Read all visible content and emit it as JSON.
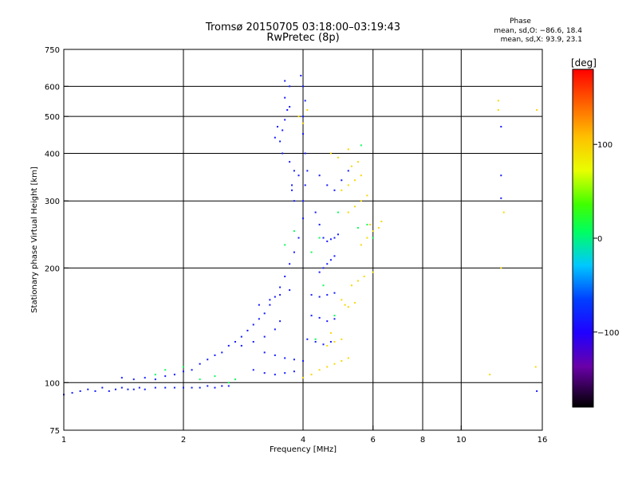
{
  "chart_data": {
    "type": "scatter",
    "title": "Tromsø 20150705 03:18:00–03:19:43",
    "subtitle": "RwPretec (8p)",
    "xlabel": "Frequency [MHz]",
    "ylabel": "Stationary phase Virtual Height [km]",
    "x_scale": "log",
    "y_scale": "log",
    "xlim": [
      1,
      16
    ],
    "ylim": [
      75,
      750
    ],
    "x_ticks": [
      1,
      2,
      4,
      6,
      8,
      10,
      16
    ],
    "y_ticks": [
      75,
      100,
      200,
      300,
      400,
      500,
      600,
      750
    ],
    "x_gridlines": [
      1,
      2,
      4,
      6,
      8,
      10
    ],
    "y_gridlines": [
      100,
      200,
      300,
      400,
      500,
      600
    ],
    "grid": true,
    "phase_legend": {
      "title": "Phase",
      "mean_sd_O": "mean, sd,O: −86.6, 18.4",
      "mean_sd_X": "mean, sd,X:  93.9, 23.1"
    },
    "colorbar": {
      "label": "[deg]",
      "range": [
        -180,
        180
      ],
      "ticks": [
        {
          "value": 100,
          "label": "100"
        },
        {
          "value": 0,
          "label": "0"
        },
        {
          "value": -100,
          "label": "−100"
        }
      ]
    },
    "series": [
      {
        "polarization": "O",
        "phase_mean": -86.6,
        "points": [
          [
            1.0,
            93
          ],
          [
            1.05,
            94
          ],
          [
            1.1,
            95
          ],
          [
            1.15,
            96
          ],
          [
            1.2,
            95
          ],
          [
            1.25,
            97
          ],
          [
            1.3,
            95
          ],
          [
            1.35,
            96
          ],
          [
            1.4,
            97
          ],
          [
            1.45,
            96
          ],
          [
            1.5,
            96
          ],
          [
            1.55,
            97
          ],
          [
            1.6,
            96
          ],
          [
            1.7,
            97
          ],
          [
            1.8,
            97
          ],
          [
            1.9,
            97
          ],
          [
            2.0,
            97
          ],
          [
            2.1,
            97
          ],
          [
            2.2,
            97
          ],
          [
            2.3,
            98
          ],
          [
            2.4,
            97
          ],
          [
            2.5,
            98
          ],
          [
            2.6,
            98
          ],
          [
            1.4,
            103
          ],
          [
            1.5,
            102
          ],
          [
            1.6,
            103
          ],
          [
            1.7,
            102
          ],
          [
            1.8,
            104
          ],
          [
            1.9,
            105
          ],
          [
            2.0,
            107
          ],
          [
            2.1,
            108
          ],
          [
            2.2,
            112
          ],
          [
            2.3,
            115
          ],
          [
            2.4,
            118
          ],
          [
            2.5,
            120
          ],
          [
            2.6,
            125
          ],
          [
            2.7,
            128
          ],
          [
            2.8,
            132
          ],
          [
            2.9,
            137
          ],
          [
            3.0,
            142
          ],
          [
            3.1,
            147
          ],
          [
            3.2,
            152
          ],
          [
            3.3,
            160
          ],
          [
            3.4,
            168
          ],
          [
            3.5,
            178
          ],
          [
            3.6,
            190
          ],
          [
            3.7,
            205
          ],
          [
            3.8,
            220
          ],
          [
            3.9,
            240
          ],
          [
            4.0,
            270
          ],
          [
            4.0,
            300
          ],
          [
            4.05,
            330
          ],
          [
            4.1,
            360
          ],
          [
            4.05,
            400
          ],
          [
            4.0,
            450
          ],
          [
            4.0,
            500
          ],
          [
            4.05,
            550
          ],
          [
            4.0,
            600
          ],
          [
            3.95,
            640
          ],
          [
            3.5,
            430
          ],
          [
            3.55,
            460
          ],
          [
            3.6,
            490
          ],
          [
            3.65,
            520
          ],
          [
            3.6,
            560
          ],
          [
            3.7,
            600
          ],
          [
            3.55,
            400
          ],
          [
            3.7,
            380
          ],
          [
            3.8,
            360
          ],
          [
            3.75,
            330
          ],
          [
            3.4,
            440
          ],
          [
            3.45,
            470
          ],
          [
            3.7,
            530
          ],
          [
            3.6,
            620
          ],
          [
            3.75,
            320
          ],
          [
            3.8,
            300
          ],
          [
            3.9,
            350
          ],
          [
            4.5,
            240
          ],
          [
            4.6,
            235
          ],
          [
            4.7,
            238
          ],
          [
            4.8,
            240
          ],
          [
            4.9,
            245
          ],
          [
            4.4,
            260
          ],
          [
            4.3,
            280
          ],
          [
            4.5,
            200
          ],
          [
            4.6,
            205
          ],
          [
            4.7,
            210
          ],
          [
            4.8,
            215
          ],
          [
            4.4,
            195
          ],
          [
            4.2,
            170
          ],
          [
            4.4,
            168
          ],
          [
            4.6,
            170
          ],
          [
            4.8,
            172
          ],
          [
            4.2,
            150
          ],
          [
            4.4,
            148
          ],
          [
            4.6,
            145
          ],
          [
            4.8,
            147
          ],
          [
            4.1,
            130
          ],
          [
            4.3,
            128
          ],
          [
            4.5,
            126
          ],
          [
            4.7,
            128
          ],
          [
            3.2,
            120
          ],
          [
            3.4,
            118
          ],
          [
            3.6,
            116
          ],
          [
            3.8,
            115
          ],
          [
            4.0,
            114
          ],
          [
            3.0,
            108
          ],
          [
            3.2,
            106
          ],
          [
            3.4,
            105
          ],
          [
            3.6,
            106
          ],
          [
            3.8,
            107
          ],
          [
            2.8,
            125
          ],
          [
            3.0,
            128
          ],
          [
            3.2,
            132
          ],
          [
            3.4,
            138
          ],
          [
            3.5,
            145
          ],
          [
            3.1,
            160
          ],
          [
            3.3,
            165
          ],
          [
            3.5,
            170
          ],
          [
            3.7,
            175
          ],
          [
            4.6,
            330
          ],
          [
            4.8,
            320
          ],
          [
            5.0,
            340
          ],
          [
            5.2,
            360
          ],
          [
            4.4,
            350
          ],
          [
            12.6,
            470
          ],
          [
            12.6,
            350
          ],
          [
            12.6,
            305
          ],
          [
            15.5,
            95
          ]
        ]
      },
      {
        "polarization": "X",
        "phase_mean": 93.9,
        "points": [
          [
            4.6,
            110
          ],
          [
            4.8,
            112
          ],
          [
            5.0,
            114
          ],
          [
            5.2,
            116
          ],
          [
            4.4,
            108
          ],
          [
            4.2,
            105
          ],
          [
            4.0,
            103
          ],
          [
            4.6,
            125
          ],
          [
            4.8,
            128
          ],
          [
            5.0,
            130
          ],
          [
            4.7,
            135
          ],
          [
            5.0,
            165
          ],
          [
            5.1,
            160
          ],
          [
            5.2,
            158
          ],
          [
            5.4,
            162
          ],
          [
            5.3,
            180
          ],
          [
            5.5,
            185
          ],
          [
            5.7,
            190
          ],
          [
            6.0,
            195
          ],
          [
            5.6,
            230
          ],
          [
            5.8,
            240
          ],
          [
            6.0,
            250
          ],
          [
            6.2,
            255
          ],
          [
            5.9,
            260
          ],
          [
            6.3,
            265
          ],
          [
            5.2,
            280
          ],
          [
            5.4,
            290
          ],
          [
            5.6,
            300
          ],
          [
            5.8,
            310
          ],
          [
            5.0,
            320
          ],
          [
            5.2,
            330
          ],
          [
            5.4,
            340
          ],
          [
            5.6,
            350
          ],
          [
            5.3,
            370
          ],
          [
            5.5,
            380
          ],
          [
            4.7,
            400
          ],
          [
            4.9,
            390
          ],
          [
            5.2,
            410
          ],
          [
            3.9,
            500
          ],
          [
            4.0,
            480
          ],
          [
            4.1,
            520
          ],
          [
            12.4,
            550
          ],
          [
            12.4,
            520
          ],
          [
            12.8,
            280
          ],
          [
            15.5,
            520
          ],
          [
            15.4,
            110
          ],
          [
            11.8,
            105
          ],
          [
            12.6,
            200
          ]
        ]
      },
      {
        "polarization": "other",
        "phase_mean": 10,
        "points": [
          [
            1.7,
            105
          ],
          [
            1.8,
            108
          ],
          [
            2.0,
            110
          ],
          [
            2.2,
            102
          ],
          [
            2.4,
            104
          ],
          [
            2.6,
            100
          ],
          [
            2.7,
            102
          ],
          [
            3.6,
            230
          ],
          [
            3.8,
            250
          ],
          [
            4.2,
            220
          ],
          [
            4.4,
            240
          ],
          [
            4.9,
            280
          ],
          [
            5.5,
            255
          ],
          [
            5.8,
            260
          ],
          [
            6.0,
            240
          ],
          [
            4.5,
            180
          ],
          [
            4.8,
            150
          ],
          [
            4.3,
            130
          ],
          [
            5.6,
            420
          ]
        ]
      }
    ]
  }
}
